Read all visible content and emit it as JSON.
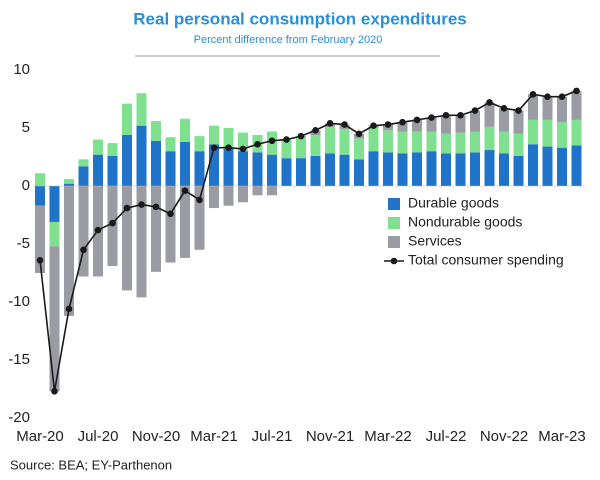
{
  "chart_data": {
    "type": "stacked_bar_line",
    "title": "Real personal consumption expenditures",
    "subtitle": "Percent difference from February 2020",
    "source": "Source: BEA; EY-Parthenon",
    "categories": [
      "Mar-20",
      null,
      null,
      null,
      "Jul-20",
      null,
      null,
      null,
      "Nov-20",
      null,
      null,
      null,
      "Mar-21",
      null,
      null,
      null,
      "Jul-21",
      null,
      null,
      null,
      "Nov-21",
      null,
      null,
      null,
      "Mar-22",
      null,
      null,
      null,
      "Jul-22",
      null,
      null,
      null,
      "Nov-22",
      null,
      null,
      null,
      "Mar-23",
      null
    ],
    "series": [
      {
        "name": "Durable goods",
        "color": "#1f74c9",
        "kind": "bar",
        "values": [
          -1.7,
          -3.1,
          0.2,
          1.7,
          2.7,
          2.6,
          4.4,
          5.2,
          3.9,
          3.0,
          3.8,
          3.0,
          3.6,
          3.2,
          3.0,
          2.9,
          2.7,
          2.4,
          2.4,
          2.6,
          2.8,
          2.7,
          2.3,
          3.0,
          2.9,
          2.8,
          2.9,
          3.0,
          2.8,
          2.8,
          2.9,
          3.1,
          2.8,
          2.6,
          3.6,
          3.4,
          3.3,
          3.5
        ]
      },
      {
        "name": "Nondurable goods",
        "color": "#7fe08f",
        "kind": "bar",
        "values": [
          1.1,
          -2.1,
          0.4,
          0.6,
          1.3,
          1.1,
          2.7,
          2.8,
          1.7,
          1.2,
          2.0,
          1.3,
          1.6,
          1.8,
          1.6,
          1.5,
          2.0,
          1.6,
          1.8,
          1.8,
          2.3,
          2.2,
          1.8,
          2.0,
          1.9,
          1.9,
          1.8,
          1.7,
          1.7,
          1.8,
          1.8,
          2.0,
          1.9,
          1.9,
          2.1,
          2.3,
          2.2,
          2.2
        ]
      },
      {
        "name": "Services",
        "color": "#9b9ba3",
        "kind": "bar",
        "values": [
          -5.8,
          -12.5,
          -11.2,
          -7.8,
          -7.8,
          -6.9,
          -9.0,
          -9.6,
          -7.4,
          -6.6,
          -6.2,
          -5.5,
          -1.9,
          -1.7,
          -1.4,
          -0.8,
          -0.8,
          0.0,
          0.1,
          0.4,
          0.3,
          0.4,
          0.4,
          0.2,
          0.5,
          0.8,
          1.0,
          1.2,
          1.6,
          1.5,
          1.8,
          2.1,
          2.0,
          2.0,
          2.2,
          2.0,
          2.2,
          2.5
        ]
      },
      {
        "name": "Total consumer spending",
        "color": "#1a1a1a",
        "kind": "line",
        "values": [
          -6.4,
          -17.7,
          -10.6,
          -5.5,
          -3.8,
          -3.2,
          -1.9,
          -1.6,
          -1.8,
          -2.4,
          -0.4,
          -1.2,
          3.3,
          3.3,
          3.2,
          3.6,
          3.9,
          4.0,
          4.3,
          4.8,
          5.4,
          5.3,
          4.5,
          5.2,
          5.3,
          5.5,
          5.7,
          5.9,
          6.1,
          6.1,
          6.5,
          7.2,
          6.7,
          6.5,
          7.9,
          7.7,
          7.7,
          8.2
        ]
      }
    ],
    "ylim": [
      -20,
      10
    ],
    "yticks": [
      -20,
      -15,
      -10,
      -5,
      0,
      5,
      10
    ],
    "grid": false,
    "legend": "right"
  }
}
